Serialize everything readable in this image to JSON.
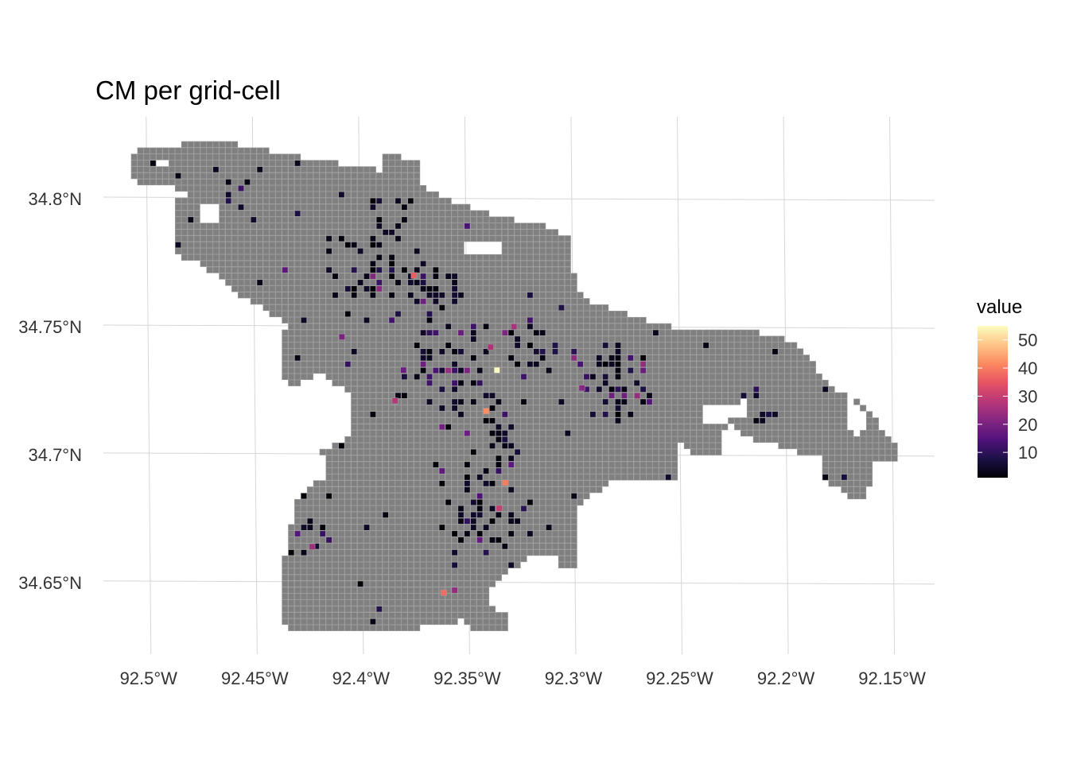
{
  "title": "CM per grid-cell",
  "x_axis": {
    "ticks": [
      "92.5°W",
      "92.45°W",
      "92.4°W",
      "92.35°W",
      "92.3°W",
      "92.25°W",
      "92.2°W",
      "92.15°W"
    ],
    "values": [
      -92.5,
      -92.45,
      -92.4,
      -92.35,
      -92.3,
      -92.25,
      -92.2,
      -92.15
    ],
    "range": [
      -92.525,
      -92.13
    ]
  },
  "y_axis": {
    "ticks": [
      "34.65°N",
      "34.7°N",
      "34.75°N",
      "34.8°N"
    ],
    "values": [
      34.65,
      34.7,
      34.75,
      34.8
    ],
    "range": [
      34.622,
      34.832
    ]
  },
  "legend": {
    "title": "value",
    "position": "right",
    "ticks": [
      "10",
      "20",
      "30",
      "40",
      "50"
    ],
    "tick_values": [
      10,
      20,
      30,
      40,
      50
    ],
    "range": [
      1,
      55
    ],
    "stops": [
      "#000004",
      "#1d1147",
      "#51127c",
      "#832681",
      "#b73779",
      "#e75263",
      "#fc8961",
      "#fec488",
      "#fcfdbf"
    ]
  },
  "colors": {
    "empty_cell": "#808080",
    "cell_border": "#9a9a9a",
    "grid": "#d6d6d6"
  },
  "chart_data": {
    "type": "heatmap",
    "title": "CM per grid-cell",
    "legend_title": "value",
    "grid": true,
    "note": "gray cells = grid-cells with no value; colored cells = value on magma scale",
    "highlight_cells": [
      {
        "lon": -92.336,
        "lat": 34.733,
        "value": 55
      },
      {
        "lon": -92.341,
        "lat": 34.717,
        "value": 42
      },
      {
        "lon": -92.332,
        "lat": 34.689,
        "value": 40
      },
      {
        "lon": -92.361,
        "lat": 34.646,
        "value": 38
      },
      {
        "lon": -92.375,
        "lat": 34.77,
        "value": 36
      },
      {
        "lon": -92.335,
        "lat": 34.679,
        "value": 30
      },
      {
        "lon": -92.384,
        "lat": 34.721,
        "value": 28
      },
      {
        "lon": -92.339,
        "lat": 34.742,
        "value": 27
      },
      {
        "lon": -92.328,
        "lat": 34.75,
        "value": 26
      },
      {
        "lon": -92.423,
        "lat": 34.664,
        "value": 25
      },
      {
        "lon": -92.27,
        "lat": 34.723,
        "value": 24
      },
      {
        "lon": -92.296,
        "lat": 34.726,
        "value": 22
      },
      {
        "lon": -92.409,
        "lat": 34.746,
        "value": 20
      },
      {
        "lon": -92.38,
        "lat": 34.733,
        "value": 18
      }
    ]
  }
}
